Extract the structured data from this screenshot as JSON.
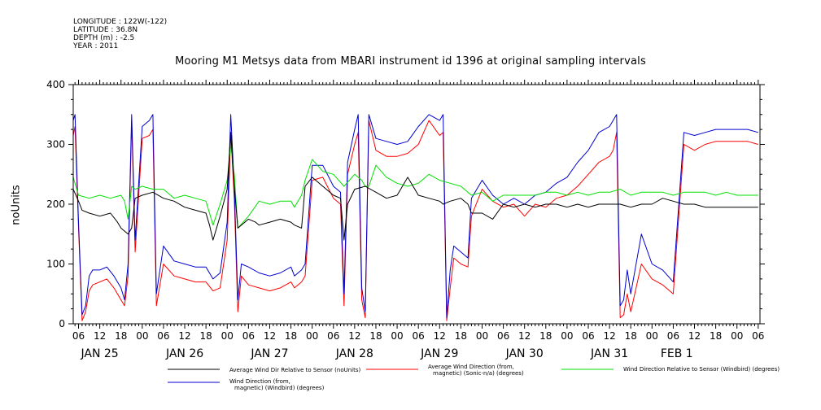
{
  "meta": {
    "longitude": "LONGITUDE : 122W(-122)",
    "latitude": "LATITUDE : 36.8N",
    "depth": "DEPTH (m) : -2.5",
    "year": "YEAR : 2011"
  },
  "chart_data": {
    "type": "line",
    "title": "Mooring M1 Metsys data from MBARI instrument id 1396 at original sampling intervals",
    "ylabel": "noUnits",
    "xlabel": "",
    "ylim": [
      0,
      400
    ],
    "yticks": [
      0,
      100,
      200,
      300,
      400
    ],
    "xlim": [
      4.5,
      198.5
    ],
    "x_unit": "hours since 2011-01-25 00:00",
    "hour_ticks": [
      "06",
      "12",
      "18",
      "00",
      "06",
      "12",
      "18",
      "00",
      "06",
      "12",
      "18",
      "00",
      "06",
      "12",
      "18",
      "00",
      "06",
      "12",
      "18",
      "00",
      "06",
      "12",
      "18",
      "00",
      "06",
      "12",
      "18",
      "00",
      "06",
      "12",
      "18",
      "00",
      "06"
    ],
    "hour_tick_x": [
      6,
      12,
      18,
      24,
      30,
      36,
      42,
      48,
      54,
      60,
      66,
      72,
      78,
      84,
      90,
      96,
      102,
      108,
      114,
      120,
      126,
      132,
      138,
      144,
      150,
      156,
      162,
      168,
      174,
      180,
      186,
      192,
      198
    ],
    "date_labels": [
      {
        "text": "JAN 25",
        "x": 12
      },
      {
        "text": "JAN 26",
        "x": 36
      },
      {
        "text": "JAN 27",
        "x": 60
      },
      {
        "text": "JAN 28",
        "x": 84
      },
      {
        "text": "JAN 29",
        "x": 108
      },
      {
        "text": "JAN 30",
        "x": 132
      },
      {
        "text": "JAN 31",
        "x": 156
      },
      {
        "text": "FEB  1",
        "x": 175
      }
    ],
    "grid": false,
    "legend_position": "bottom",
    "series": [
      {
        "name": "Average Wind Dir Relative to Sensor (noUnits)",
        "color": "#000000",
        "x": [
          4.5,
          6,
          7,
          9,
          12,
          15,
          17,
          18,
          20,
          21,
          22,
          24,
          27,
          30,
          33,
          36,
          39,
          42,
          43,
          44,
          46,
          48,
          49,
          50,
          51,
          54,
          56,
          57,
          60,
          63,
          66,
          67,
          69,
          70,
          72,
          75,
          78,
          80,
          81,
          82,
          84,
          87,
          90,
          93,
          96,
          99,
          102,
          105,
          108,
          109,
          111,
          114,
          116,
          117,
          120,
          123,
          126,
          129,
          132,
          135,
          138,
          141,
          144,
          147,
          150,
          153,
          156,
          159,
          162,
          165,
          168,
          171,
          174,
          177,
          180,
          183,
          186,
          189,
          192,
          195,
          198
        ],
        "y": [
          225,
          205,
          190,
          185,
          180,
          185,
          170,
          160,
          150,
          160,
          210,
          215,
          220,
          210,
          205,
          195,
          190,
          185,
          165,
          140,
          180,
          225,
          320,
          230,
          160,
          175,
          170,
          165,
          170,
          175,
          170,
          165,
          160,
          230,
          245,
          230,
          215,
          210,
          140,
          200,
          225,
          230,
          220,
          210,
          215,
          245,
          215,
          210,
          205,
          200,
          205,
          210,
          200,
          185,
          185,
          175,
          200,
          195,
          200,
          195,
          200,
          200,
          195,
          200,
          195,
          200,
          200,
          200,
          195,
          200,
          200,
          210,
          205,
          200,
          200,
          195,
          195,
          195,
          195,
          195,
          195
        ]
      },
      {
        "name": "Average Wind Direction (from, magnetic) (Sonic-n/a) (degrees)",
        "color": "#ff0000",
        "x": [
          4.5,
          5,
          6,
          7,
          8,
          9,
          10,
          12,
          14,
          16,
          18,
          19,
          20,
          21,
          22,
          24,
          26,
          27,
          28,
          30,
          33,
          36,
          39,
          42,
          44,
          46,
          48,
          49,
          50,
          51,
          52,
          54,
          57,
          60,
          63,
          66,
          67,
          69,
          70,
          72,
          75,
          78,
          80,
          81,
          82,
          84,
          85,
          86,
          87,
          88,
          90,
          93,
          96,
          99,
          102,
          105,
          108,
          109,
          110,
          111,
          112,
          114,
          116,
          117,
          120,
          123,
          126,
          129,
          132,
          135,
          138,
          141,
          144,
          147,
          150,
          153,
          156,
          157,
          158,
          159,
          160,
          161,
          162,
          165,
          168,
          171,
          174,
          177,
          180,
          183,
          186,
          189,
          192,
          195,
          198
        ],
        "y": [
          315,
          330,
          160,
          5,
          20,
          55,
          65,
          70,
          75,
          60,
          40,
          30,
          80,
          340,
          120,
          310,
          315,
          325,
          30,
          100,
          80,
          75,
          70,
          70,
          55,
          60,
          140,
          320,
          210,
          20,
          80,
          65,
          60,
          55,
          60,
          70,
          60,
          70,
          80,
          240,
          245,
          210,
          200,
          30,
          250,
          300,
          320,
          40,
          10,
          340,
          290,
          280,
          280,
          285,
          300,
          340,
          315,
          320,
          5,
          60,
          110,
          100,
          95,
          180,
          225,
          205,
          195,
          200,
          180,
          200,
          195,
          210,
          215,
          230,
          250,
          270,
          280,
          290,
          320,
          10,
          15,
          50,
          20,
          100,
          75,
          65,
          50,
          300,
          290,
          300,
          305,
          305,
          305,
          305,
          300
        ]
      },
      {
        "name": "Wind Direction Relative to Sensor (Windbird) (degrees)",
        "color": "#00e000",
        "x": [
          4.5,
          6,
          9,
          12,
          15,
          18,
          19,
          20,
          21,
          22,
          24,
          27,
          30,
          33,
          36,
          39,
          42,
          43,
          44,
          46,
          48,
          49,
          50,
          51,
          54,
          57,
          60,
          63,
          66,
          67,
          69,
          70,
          72,
          75,
          78,
          81,
          84,
          86,
          87,
          88,
          90,
          93,
          96,
          99,
          102,
          105,
          108,
          111,
          114,
          117,
          120,
          123,
          126,
          129,
          132,
          135,
          138,
          141,
          144,
          147,
          150,
          153,
          156,
          159,
          162,
          165,
          168,
          171,
          174,
          177,
          180,
          183,
          186,
          189,
          192,
          195,
          198
        ],
        "y": [
          245,
          215,
          210,
          215,
          210,
          215,
          205,
          175,
          230,
          225,
          230,
          225,
          225,
          210,
          215,
          210,
          205,
          185,
          165,
          200,
          240,
          300,
          250,
          160,
          180,
          205,
          200,
          205,
          205,
          195,
          215,
          240,
          275,
          255,
          250,
          230,
          250,
          240,
          230,
          230,
          265,
          245,
          235,
          230,
          235,
          250,
          240,
          235,
          230,
          215,
          220,
          205,
          215,
          215,
          215,
          215,
          220,
          220,
          215,
          220,
          215,
          220,
          220,
          225,
          215,
          220,
          220,
          220,
          215,
          220,
          220,
          220,
          215,
          220,
          215,
          215,
          215
        ]
      },
      {
        "name": "Wind Direction (from, magnetic) (Windbird) (degrees)",
        "color": "#0000d0",
        "x": [
          4.5,
          5,
          6,
          7,
          8,
          9,
          10,
          12,
          14,
          16,
          18,
          19,
          20,
          21,
          22,
          24,
          26,
          27,
          28,
          30,
          33,
          36,
          39,
          42,
          44,
          46,
          48,
          49,
          50,
          51,
          52,
          54,
          57,
          60,
          63,
          66,
          67,
          69,
          70,
          72,
          75,
          78,
          80,
          81,
          82,
          84,
          85,
          86,
          87,
          88,
          90,
          93,
          96,
          99,
          102,
          105,
          108,
          109,
          110,
          111,
          112,
          114,
          116,
          117,
          120,
          123,
          126,
          129,
          132,
          135,
          138,
          141,
          144,
          147,
          150,
          153,
          156,
          157,
          158,
          159,
          160,
          161,
          162,
          165,
          168,
          171,
          174,
          177,
          180,
          183,
          186,
          189,
          192,
          195,
          198
        ],
        "y": [
          340,
          350,
          170,
          15,
          30,
          80,
          90,
          90,
          95,
          80,
          60,
          40,
          100,
          350,
          140,
          330,
          340,
          350,
          50,
          130,
          105,
          100,
          95,
          95,
          75,
          85,
          170,
          350,
          230,
          40,
          100,
          95,
          85,
          80,
          85,
          95,
          80,
          90,
          100,
          265,
          265,
          230,
          220,
          50,
          270,
          325,
          350,
          60,
          20,
          350,
          310,
          305,
          300,
          305,
          330,
          350,
          340,
          350,
          10,
          90,
          130,
          120,
          110,
          210,
          240,
          215,
          200,
          210,
          200,
          215,
          220,
          235,
          245,
          270,
          290,
          320,
          330,
          340,
          350,
          30,
          40,
          90,
          50,
          150,
          100,
          90,
          70,
          320,
          315,
          320,
          325,
          325,
          325,
          325,
          320
        ]
      }
    ]
  }
}
